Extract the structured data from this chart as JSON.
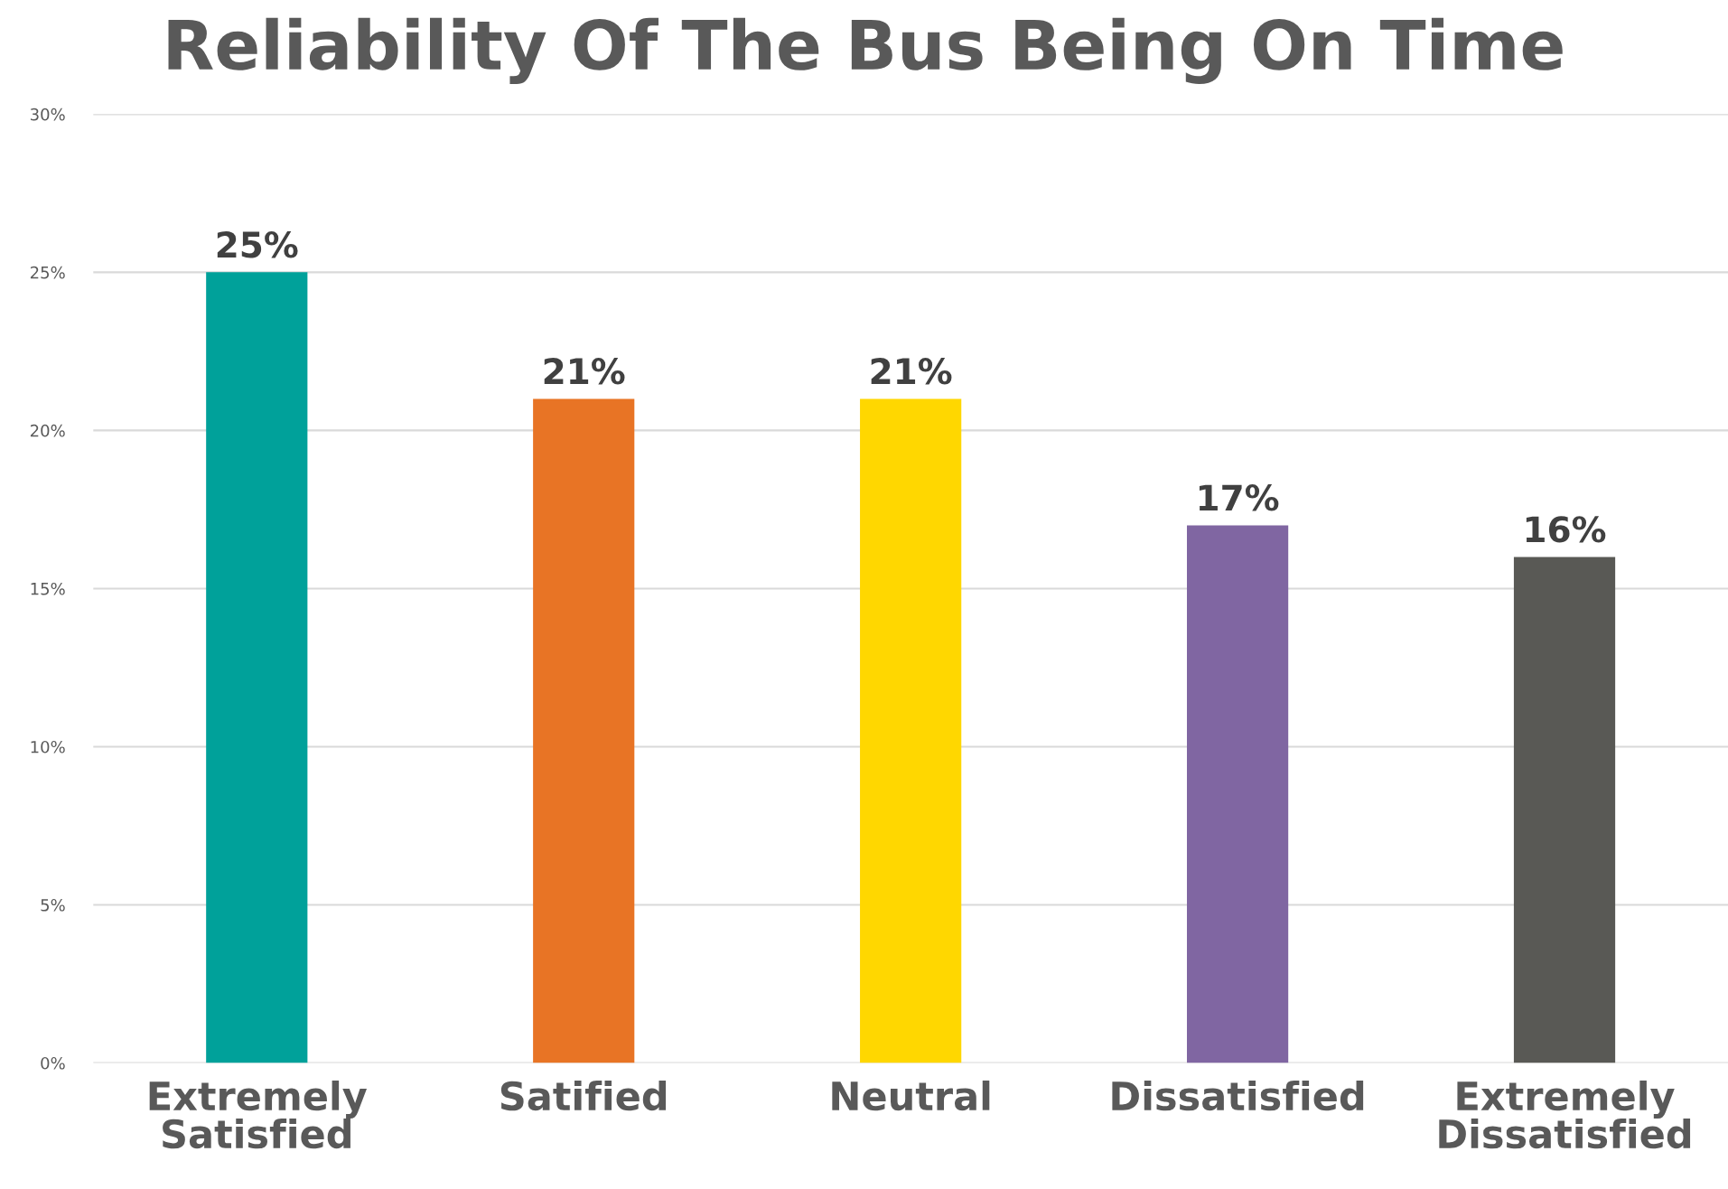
{
  "chart_data": {
    "type": "bar",
    "title": "Reliability Of The Bus Being On Time",
    "categories": [
      "Extremely\nSatisfied",
      "Satified",
      "Neutral",
      "Dissatisfied",
      "Extremely\nDissatisfied"
    ],
    "values": [
      25,
      21,
      21,
      17,
      16
    ],
    "colors": [
      "#00a19a",
      "#e87425",
      "#ffd700",
      "#8066a2",
      "#595955"
    ],
    "value_labels": [
      "25%",
      "21%",
      "21%",
      "17%",
      "16%"
    ],
    "ylim": [
      0,
      30
    ],
    "yticks": [
      {
        "value": 0,
        "label": "0%"
      },
      {
        "value": 5,
        "label": "5%"
      },
      {
        "value": 10,
        "label": "10%"
      },
      {
        "value": 15,
        "label": "15%"
      },
      {
        "value": 20,
        "label": "20%"
      },
      {
        "value": 25,
        "label": "25%"
      },
      {
        "value": 30,
        "label": "30%"
      }
    ],
    "grid": "y",
    "legend": false
  }
}
